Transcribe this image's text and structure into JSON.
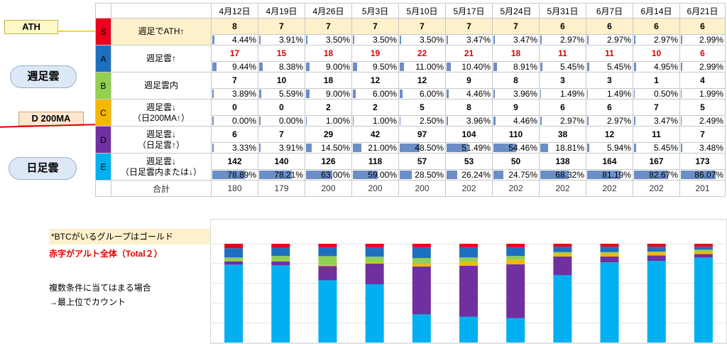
{
  "weeks": [
    "4月12日",
    "4月19日",
    "4月26日",
    "5月3日",
    "5月10日",
    "5月17日",
    "5月24日",
    "5月31日",
    "6月7日",
    "6月14日",
    "6月21日"
  ],
  "annotations": {
    "ath": "ATH",
    "weekly_cloud": "週足雲",
    "d200ma": "D 200MA",
    "daily_cloud": "日足雲"
  },
  "groups": [
    {
      "id": "S",
      "color": "#e8001c",
      "cond1": "週足でATH↑",
      "cond2": "",
      "counts": [
        8,
        7,
        7,
        7,
        7,
        7,
        7,
        6,
        6,
        6,
        6
      ],
      "pcts": [
        "4.44%",
        "3.91%",
        "3.50%",
        "3.50%",
        "3.50%",
        "3.47%",
        "3.47%",
        "2.97%",
        "2.97%",
        "2.97%",
        "2.99%"
      ],
      "pctv": [
        4.44,
        3.91,
        3.5,
        3.5,
        3.5,
        3.47,
        3.47,
        2.97,
        2.97,
        2.97,
        2.99
      ]
    },
    {
      "id": "A",
      "color": "#1f6fbf",
      "cond1": "週足雲↑",
      "cond2": "",
      "counts": [
        17,
        15,
        18,
        19,
        22,
        21,
        18,
        11,
        11,
        10,
        6
      ],
      "pcts": [
        "9.44%",
        "8.38%",
        "9.00%",
        "9.50%",
        "11.00%",
        "10.40%",
        "8.91%",
        "5.45%",
        "5.45%",
        "4.95%",
        "2.99%"
      ],
      "pctv": [
        9.44,
        8.38,
        9.0,
        9.5,
        11.0,
        10.4,
        8.91,
        5.45,
        5.45,
        4.95,
        2.99
      ]
    },
    {
      "id": "B",
      "color": "#92d050",
      "cond1": "週足雲内",
      "cond2": "",
      "counts": [
        7,
        10,
        18,
        12,
        12,
        9,
        8,
        3,
        3,
        1,
        4
      ],
      "pcts": [
        "3.89%",
        "5.59%",
        "9.00%",
        "6.00%",
        "6.00%",
        "4.46%",
        "3.96%",
        "1.49%",
        "1.49%",
        "0.50%",
        "1.99%"
      ],
      "pctv": [
        3.89,
        5.59,
        9.0,
        6.0,
        6.0,
        4.46,
        3.96,
        1.49,
        1.49,
        0.5,
        1.99
      ]
    },
    {
      "id": "C",
      "color": "#f5b800",
      "cond1": "週足雲↓",
      "cond2": "（日200MA↑）",
      "counts": [
        0,
        0,
        2,
        2,
        5,
        8,
        9,
        6,
        6,
        7,
        5
      ],
      "pcts": [
        "0.00%",
        "0.00%",
        "1.00%",
        "1.00%",
        "2.50%",
        "3.96%",
        "4.46%",
        "2.97%",
        "2.97%",
        "3.47%",
        "2.49%"
      ],
      "pctv": [
        0,
        0,
        1.0,
        1.0,
        2.5,
        3.96,
        4.46,
        2.97,
        2.97,
        3.47,
        2.49
      ]
    },
    {
      "id": "D",
      "color": "#7030a0",
      "cond1": "週足雲↓",
      "cond2": "（日足雲↑）",
      "counts": [
        6,
        7,
        29,
        42,
        97,
        104,
        110,
        38,
        12,
        11,
        7
      ],
      "pcts": [
        "3.33%",
        "3.91%",
        "14.50%",
        "21.00%",
        "48.50%",
        "51.49%",
        "54.46%",
        "18.81%",
        "5.94%",
        "5.45%",
        "3.48%"
      ],
      "pctv": [
        3.33,
        3.91,
        14.5,
        21.0,
        48.5,
        51.49,
        54.46,
        18.81,
        5.94,
        5.45,
        3.48
      ]
    },
    {
      "id": "E",
      "color": "#00b0f0",
      "cond1": "週足雲↓",
      "cond2": "（日足雲内または↓）",
      "counts": [
        142,
        140,
        126,
        118,
        57,
        53,
        50,
        138,
        164,
        167,
        173
      ],
      "pcts": [
        "78.89%",
        "78.21%",
        "63.00%",
        "59.00%",
        "28.50%",
        "26.24%",
        "24.75%",
        "68.32%",
        "81.19%",
        "82.67%",
        "86.07%"
      ],
      "pctv": [
        78.89,
        78.21,
        63.0,
        59.0,
        28.5,
        26.24,
        24.75,
        68.32,
        81.19,
        82.67,
        86.07
      ]
    }
  ],
  "total_label": "合計",
  "totals": [
    180,
    179,
    200,
    200,
    200,
    202,
    202,
    202,
    202,
    202,
    201
  ],
  "notes": {
    "btc_gold": "*BTCがいるグループはゴールド",
    "red_alt": "赤字がアルト全体（Total２）",
    "multi1": "複数条件に当てはまる場合",
    "multi2": "→最上位でカウント"
  },
  "chart_data": {
    "type": "bar",
    "stacked": true,
    "categories": [
      "4月12日",
      "4月19日",
      "4月26日",
      "5月3日",
      "5月10日",
      "5月17日",
      "5月24日",
      "5月31日",
      "6月7日",
      "6月14日",
      "6月21日"
    ],
    "series": [
      {
        "name": "E",
        "color": "#00b0f0",
        "values": [
          78.89,
          78.21,
          63.0,
          59.0,
          28.5,
          26.24,
          24.75,
          68.32,
          81.19,
          82.67,
          86.07
        ]
      },
      {
        "name": "D",
        "color": "#7030a0",
        "values": [
          3.33,
          3.91,
          14.5,
          21.0,
          48.5,
          51.49,
          54.46,
          18.81,
          5.94,
          5.45,
          3.48
        ]
      },
      {
        "name": "C",
        "color": "#f5b800",
        "values": [
          0,
          0,
          1.0,
          1.0,
          2.5,
          3.96,
          4.46,
          2.97,
          2.97,
          3.47,
          2.49
        ]
      },
      {
        "name": "B",
        "color": "#92d050",
        "values": [
          3.89,
          5.59,
          9.0,
          6.0,
          6.0,
          4.46,
          3.96,
          1.49,
          1.49,
          0.5,
          1.99
        ]
      },
      {
        "name": "A",
        "color": "#1f6fbf",
        "values": [
          9.44,
          8.38,
          9.0,
          9.5,
          11.0,
          10.4,
          8.91,
          5.45,
          5.45,
          4.95,
          2.99
        ]
      },
      {
        "name": "S",
        "color": "#e8001c",
        "values": [
          4.44,
          3.91,
          3.5,
          3.5,
          3.5,
          3.47,
          3.47,
          2.97,
          2.97,
          2.97,
          2.99
        ]
      }
    ],
    "ylim": [
      0,
      100
    ],
    "grid": true,
    "legend": "none"
  }
}
